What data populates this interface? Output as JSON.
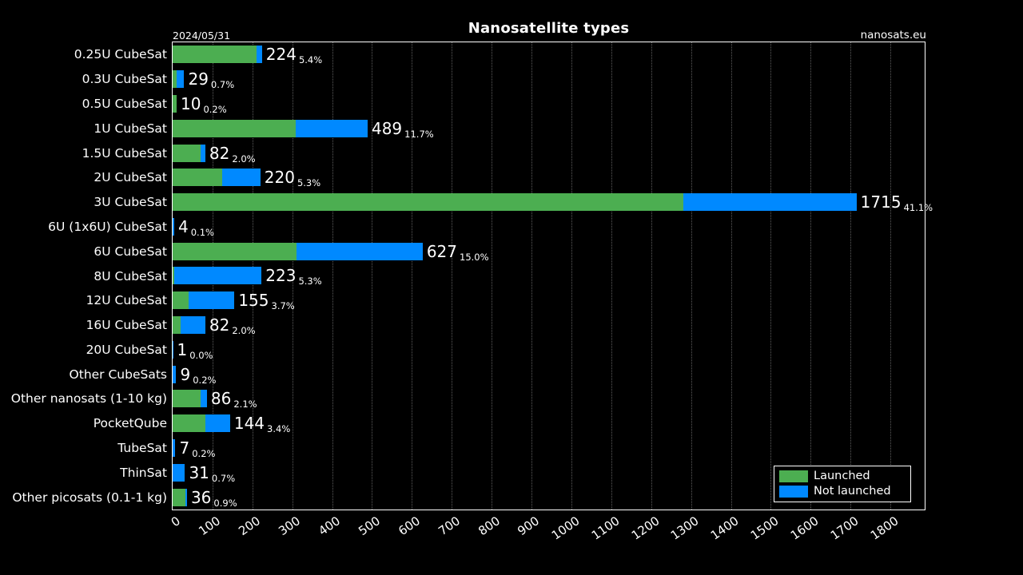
{
  "header": {
    "site": "nanosats.eu"
  },
  "chart_data": {
    "type": "bar",
    "orientation": "horizontal",
    "stacked": true,
    "title": "Nanosatellite types",
    "date_label": "2024/05/31",
    "background": "#000000",
    "text_color": "#ffffff",
    "grid": "dotted vertical",
    "categories": [
      "0.25U CubeSat",
      "0.3U CubeSat",
      "0.5U CubeSat",
      "1U CubeSat",
      "1.5U CubeSat",
      "2U CubeSat",
      "3U CubeSat",
      "6U (1x6U) CubeSat",
      "6U CubeSat",
      "8U CubeSat",
      "12U CubeSat",
      "16U CubeSat",
      "20U CubeSat",
      "Other CubeSats",
      "Other nanosats (1-10 kg)",
      "PocketQube",
      "TubeSat",
      "ThinSat",
      "Other picosats (0.1-1 kg)"
    ],
    "series": [
      {
        "name": "Launched",
        "color": "#4cae51",
        "values": [
          210,
          11,
          10,
          308,
          70,
          124,
          1280,
          0,
          310,
          4,
          41,
          20,
          0,
          0,
          71,
          83,
          0,
          0,
          32
        ]
      },
      {
        "name": "Not launched",
        "color": "#0089ff",
        "values": [
          14,
          18,
          0,
          181,
          12,
          96,
          435,
          4,
          317,
          219,
          114,
          62,
          1,
          9,
          15,
          61,
          7,
          31,
          4
        ]
      }
    ],
    "totals": [
      224,
      29,
      10,
      489,
      82,
      220,
      1715,
      4,
      627,
      223,
      155,
      82,
      1,
      9,
      86,
      144,
      7,
      31,
      36
    ],
    "percent_labels": [
      "5.4%",
      "0.7%",
      "0.2%",
      "11.7%",
      "2.0%",
      "5.3%",
      "41.1%",
      "0.1%",
      "15.0%",
      "5.3%",
      "3.7%",
      "2.0%",
      "0.0%",
      "0.2%",
      "2.1%",
      "3.4%",
      "0.2%",
      "0.7%",
      "0.9%"
    ],
    "x_ticks": [
      0,
      100,
      200,
      300,
      400,
      500,
      600,
      700,
      800,
      900,
      1000,
      1100,
      1200,
      1300,
      1400,
      1500,
      1600,
      1700,
      1800
    ],
    "xlim": [
      0,
      1886
    ],
    "legend": {
      "position": "lower right",
      "entries": [
        "Launched",
        "Not launched"
      ]
    }
  }
}
